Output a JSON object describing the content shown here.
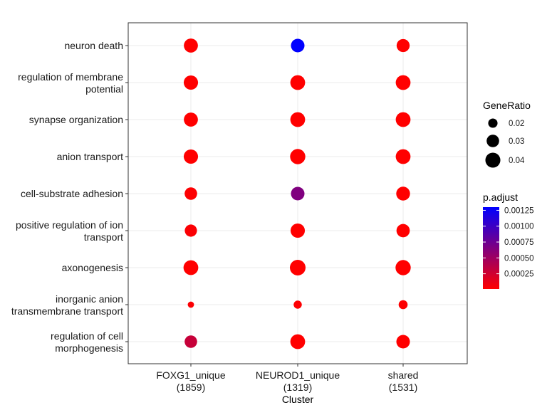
{
  "chart_data": {
    "type": "scatter",
    "subtype": "dot-plot",
    "xlabel": "Cluster",
    "ylabel": "",
    "categories_x": [
      {
        "line1": "FOXG1_unique",
        "line2": "(1859)"
      },
      {
        "line1": "NEUROD1_unique",
        "line2": "(1319)"
      },
      {
        "line1": "shared",
        "line2": "(1531)"
      }
    ],
    "terms": [
      {
        "line1": "neuron death",
        "line2": ""
      },
      {
        "line1": "regulation of membrane",
        "line2": "potential"
      },
      {
        "line1": "synapse organization",
        "line2": ""
      },
      {
        "line1": "anion transport",
        "line2": ""
      },
      {
        "line1": "cell-substrate adhesion",
        "line2": ""
      },
      {
        "line1": "positive regulation of ion",
        "line2": "transport"
      },
      {
        "line1": "axonogenesis",
        "line2": ""
      },
      {
        "line1": "inorganic anion",
        "line2": "transmembrane transport"
      },
      {
        "line1": "regulation of cell",
        "line2": "morphogenesis"
      }
    ],
    "points": [
      {
        "cluster": 0,
        "term": 0,
        "gene_ratio": 0.036,
        "p_adjust": 1e-05
      },
      {
        "cluster": 1,
        "term": 0,
        "gene_ratio": 0.034,
        "p_adjust": 0.0013
      },
      {
        "cluster": 2,
        "term": 0,
        "gene_ratio": 0.032,
        "p_adjust": 1e-05
      },
      {
        "cluster": 0,
        "term": 1,
        "gene_ratio": 0.037,
        "p_adjust": 1e-05
      },
      {
        "cluster": 1,
        "term": 1,
        "gene_ratio": 0.039,
        "p_adjust": 1e-05
      },
      {
        "cluster": 2,
        "term": 1,
        "gene_ratio": 0.039,
        "p_adjust": 1e-05
      },
      {
        "cluster": 0,
        "term": 2,
        "gene_ratio": 0.036,
        "p_adjust": 1e-05
      },
      {
        "cluster": 1,
        "term": 2,
        "gene_ratio": 0.039,
        "p_adjust": 1e-05
      },
      {
        "cluster": 2,
        "term": 2,
        "gene_ratio": 0.039,
        "p_adjust": 1e-05
      },
      {
        "cluster": 0,
        "term": 3,
        "gene_ratio": 0.037,
        "p_adjust": 1e-05
      },
      {
        "cluster": 1,
        "term": 3,
        "gene_ratio": 0.041,
        "p_adjust": 1e-05
      },
      {
        "cluster": 2,
        "term": 3,
        "gene_ratio": 0.039,
        "p_adjust": 1e-05
      },
      {
        "cluster": 0,
        "term": 4,
        "gene_ratio": 0.03,
        "p_adjust": 2e-05
      },
      {
        "cluster": 1,
        "term": 4,
        "gene_ratio": 0.034,
        "p_adjust": 0.00065
      },
      {
        "cluster": 2,
        "term": 4,
        "gene_ratio": 0.035,
        "p_adjust": 1e-05
      },
      {
        "cluster": 0,
        "term": 5,
        "gene_ratio": 0.029,
        "p_adjust": 3e-05
      },
      {
        "cluster": 1,
        "term": 5,
        "gene_ratio": 0.037,
        "p_adjust": 1e-05
      },
      {
        "cluster": 2,
        "term": 5,
        "gene_ratio": 0.033,
        "p_adjust": 1e-05
      },
      {
        "cluster": 0,
        "term": 6,
        "gene_ratio": 0.039,
        "p_adjust": 1e-05
      },
      {
        "cluster": 1,
        "term": 6,
        "gene_ratio": 0.043,
        "p_adjust": 1e-05
      },
      {
        "cluster": 2,
        "term": 6,
        "gene_ratio": 0.041,
        "p_adjust": 1e-05
      },
      {
        "cluster": 0,
        "term": 7,
        "gene_ratio": 0.013,
        "p_adjust": 3e-05
      },
      {
        "cluster": 1,
        "term": 7,
        "gene_ratio": 0.017,
        "p_adjust": 2e-05
      },
      {
        "cluster": 2,
        "term": 7,
        "gene_ratio": 0.019,
        "p_adjust": 2e-05
      },
      {
        "cluster": 0,
        "term": 8,
        "gene_ratio": 0.03,
        "p_adjust": 0.0003
      },
      {
        "cluster": 1,
        "term": 8,
        "gene_ratio": 0.039,
        "p_adjust": 1e-05
      },
      {
        "cluster": 2,
        "term": 8,
        "gene_ratio": 0.034,
        "p_adjust": 1e-05
      }
    ],
    "size_legend": {
      "title": "GeneRatio",
      "entries": [
        {
          "value": 0.02,
          "label": "0.02"
        },
        {
          "value": 0.03,
          "label": "0.03"
        },
        {
          "value": 0.04,
          "label": "0.04"
        }
      ]
    },
    "color_legend": {
      "title": "p.adjust",
      "range": [
        1e-05,
        0.0013
      ],
      "low_color": "#FF0000",
      "high_color": "#0000FF",
      "ticks": [
        {
          "value": 0.00125,
          "label": "0.00125"
        },
        {
          "value": 0.001,
          "label": "0.00100"
        },
        {
          "value": 0.00075,
          "label": "0.00075"
        },
        {
          "value": 0.0005,
          "label": "0.00050"
        },
        {
          "value": 0.00025,
          "label": "0.00025"
        }
      ]
    },
    "grid": true,
    "legend_position": "right"
  }
}
